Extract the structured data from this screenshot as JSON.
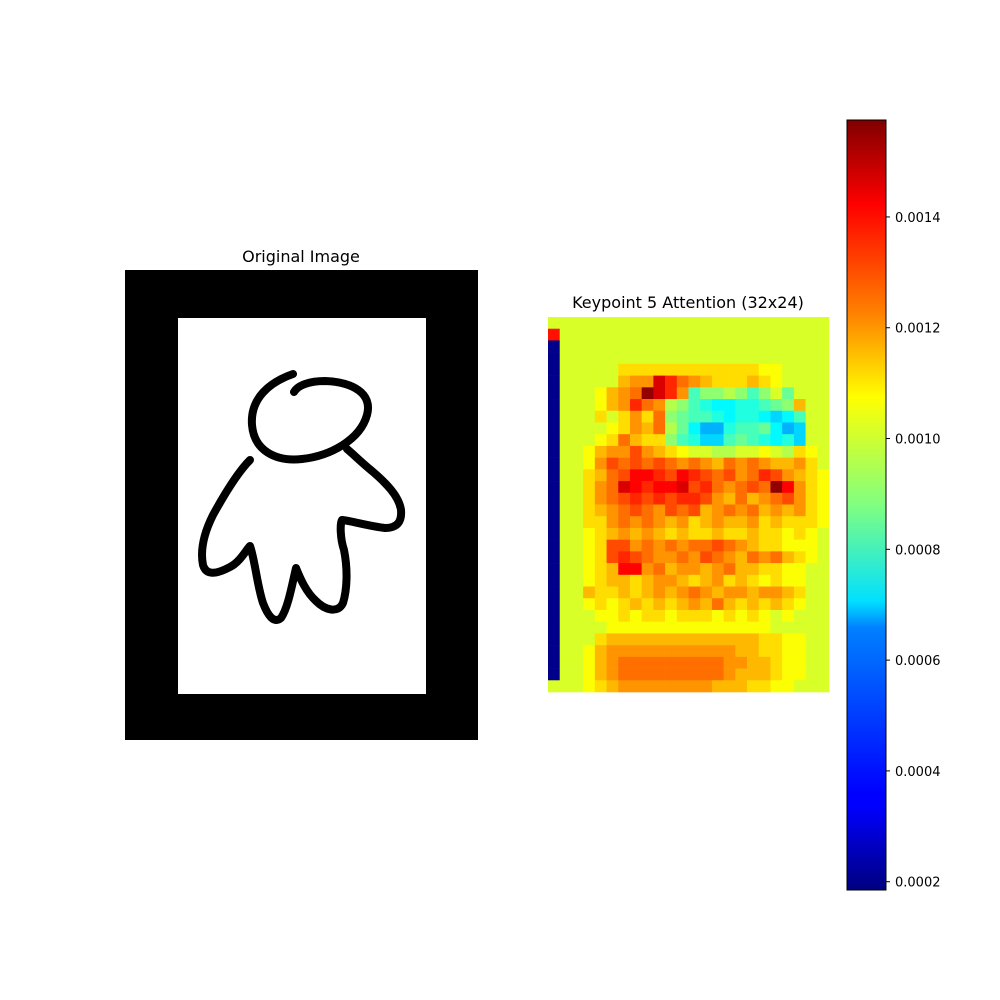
{
  "left_panel": {
    "title": "Original Image"
  },
  "right_panel": {
    "title": "Keypoint 5 Attention (32x24)"
  },
  "colorbar": {
    "colormap": "jet",
    "range": [
      0.000185,
      0.001575
    ],
    "tick_labels": [
      "0.0014",
      "0.0012",
      "0.0010",
      "0.0008",
      "0.0006",
      "0.0004",
      "0.0002"
    ],
    "tick_values": [
      0.0014,
      0.0012,
      0.001,
      0.0008,
      0.0006,
      0.0004,
      0.0002
    ]
  },
  "chart_data": {
    "type": "heatmap",
    "title": "Keypoint 5 Attention (32x24)",
    "rows": 32,
    "cols": 24,
    "vmin": 0.000185,
    "vmax": 0.001575,
    "colormap": "jet",
    "grid": false,
    "values": [
      [
        0.001,
        0.001,
        0.001,
        0.001,
        0.001,
        0.001,
        0.001,
        0.001,
        0.001,
        0.001,
        0.001,
        0.001,
        0.001,
        0.001,
        0.001,
        0.001,
        0.001,
        0.001,
        0.001,
        0.001,
        0.001,
        0.001,
        0.001,
        0.001
      ],
      [
        0.00138,
        0.001,
        0.001,
        0.001,
        0.001,
        0.001,
        0.001,
        0.001,
        0.001,
        0.001,
        0.001,
        0.001,
        0.001,
        0.001,
        0.001,
        0.001,
        0.001,
        0.001,
        0.001,
        0.001,
        0.001,
        0.001,
        0.001,
        0.001
      ],
      [
        0.0002,
        0.001,
        0.001,
        0.001,
        0.001,
        0.001,
        0.001,
        0.001,
        0.001,
        0.001,
        0.001,
        0.001,
        0.001,
        0.001,
        0.001,
        0.001,
        0.001,
        0.001,
        0.001,
        0.001,
        0.001,
        0.001,
        0.001,
        0.001
      ],
      [
        0.0002,
        0.001,
        0.001,
        0.001,
        0.001,
        0.001,
        0.001,
        0.001,
        0.001,
        0.001,
        0.001,
        0.001,
        0.001,
        0.001,
        0.001,
        0.001,
        0.001,
        0.001,
        0.001,
        0.001,
        0.001,
        0.001,
        0.001,
        0.001
      ],
      [
        0.0002,
        0.001,
        0.001,
        0.001,
        0.001,
        0.001,
        0.0011,
        0.0011,
        0.0011,
        0.0011,
        0.0011,
        0.0011,
        0.0011,
        0.0011,
        0.0011,
        0.0011,
        0.0011,
        0.0011,
        0.00105,
        0.00105,
        0.001,
        0.001,
        0.001,
        0.001
      ],
      [
        0.0002,
        0.001,
        0.001,
        0.001,
        0.001,
        0.001,
        0.00115,
        0.0012,
        0.0012,
        0.00145,
        0.00135,
        0.00125,
        0.0012,
        0.00115,
        0.0011,
        0.0011,
        0.0011,
        0.00115,
        0.0011,
        0.00105,
        0.001,
        0.001,
        0.001,
        0.001
      ],
      [
        0.0002,
        0.001,
        0.001,
        0.001,
        0.00105,
        0.00115,
        0.0012,
        0.00125,
        0.00155,
        0.00145,
        0.00135,
        0.0012,
        0.0008,
        0.0009,
        0.0009,
        0.00095,
        0.0009,
        0.0008,
        0.0009,
        0.001,
        0.00085,
        0.001,
        0.001,
        0.001
      ],
      [
        0.0002,
        0.001,
        0.001,
        0.001,
        0.00105,
        0.00115,
        0.0012,
        0.00135,
        0.00125,
        0.0012,
        0.00095,
        0.0009,
        0.0008,
        0.00075,
        0.0007,
        0.0007,
        0.00075,
        0.00075,
        0.0008,
        0.00085,
        0.0009,
        0.00115,
        0.001,
        0.001
      ],
      [
        0.0002,
        0.001,
        0.001,
        0.001,
        0.0011,
        0.001,
        0.0011,
        0.0012,
        0.0011,
        0.00125,
        0.0009,
        0.00085,
        0.0008,
        0.0008,
        0.00075,
        0.0007,
        0.00075,
        0.00075,
        0.0007,
        0.00065,
        0.0007,
        0.0008,
        0.001,
        0.001
      ],
      [
        0.0002,
        0.001,
        0.001,
        0.001,
        0.001,
        0.00105,
        0.0011,
        0.0012,
        0.00115,
        0.00125,
        0.00095,
        0.00085,
        0.0007,
        0.0006,
        0.0006,
        0.00075,
        0.0008,
        0.0008,
        0.00085,
        0.0007,
        0.0006,
        0.00065,
        0.001,
        0.001
      ],
      [
        0.0002,
        0.001,
        0.001,
        0.001,
        0.00105,
        0.0011,
        0.00125,
        0.00115,
        0.0011,
        0.0011,
        0.0009,
        0.0008,
        0.00075,
        0.00065,
        0.00065,
        0.0008,
        0.00085,
        0.0008,
        0.00075,
        0.0007,
        0.00075,
        0.00065,
        0.001,
        0.001
      ],
      [
        0.0002,
        0.001,
        0.001,
        0.00105,
        0.00115,
        0.0012,
        0.0012,
        0.0013,
        0.0012,
        0.00115,
        0.0011,
        0.00105,
        0.001,
        0.001,
        0.00095,
        0.00095,
        0.001,
        0.001,
        0.00105,
        0.001,
        0.00095,
        0.0011,
        0.00105,
        0.001
      ],
      [
        0.0002,
        0.001,
        0.001,
        0.00105,
        0.0012,
        0.0013,
        0.00125,
        0.0013,
        0.00125,
        0.0013,
        0.00125,
        0.0012,
        0.00125,
        0.0012,
        0.00115,
        0.00125,
        0.0012,
        0.00125,
        0.0012,
        0.00115,
        0.00115,
        0.0012,
        0.0011,
        0.001
      ],
      [
        0.0002,
        0.001,
        0.001,
        0.0011,
        0.00115,
        0.00125,
        0.0013,
        0.0014,
        0.0014,
        0.00135,
        0.0013,
        0.0014,
        0.00135,
        0.0013,
        0.00125,
        0.0013,
        0.0012,
        0.00125,
        0.00135,
        0.0013,
        0.0012,
        0.00115,
        0.0011,
        0.00105
      ],
      [
        0.0002,
        0.001,
        0.001,
        0.0011,
        0.0012,
        0.00125,
        0.00145,
        0.0014,
        0.00135,
        0.0014,
        0.0014,
        0.00145,
        0.0013,
        0.00135,
        0.00125,
        0.0012,
        0.00125,
        0.0013,
        0.00125,
        0.00155,
        0.0014,
        0.0012,
        0.0011,
        0.00105
      ],
      [
        0.0002,
        0.001,
        0.001,
        0.0011,
        0.0012,
        0.00125,
        0.0013,
        0.00135,
        0.0013,
        0.00135,
        0.0013,
        0.00135,
        0.00135,
        0.0013,
        0.0012,
        0.00115,
        0.00125,
        0.00115,
        0.0012,
        0.00125,
        0.0013,
        0.0012,
        0.0011,
        0.00105
      ],
      [
        0.0002,
        0.001,
        0.001,
        0.0011,
        0.00115,
        0.0012,
        0.00125,
        0.0013,
        0.00125,
        0.0012,
        0.0013,
        0.00125,
        0.0013,
        0.00115,
        0.0012,
        0.00125,
        0.0012,
        0.00125,
        0.00115,
        0.0012,
        0.00115,
        0.0012,
        0.0011,
        0.00105
      ],
      [
        0.0002,
        0.001,
        0.001,
        0.0011,
        0.0011,
        0.0012,
        0.00125,
        0.0012,
        0.00125,
        0.0012,
        0.00115,
        0.0012,
        0.0011,
        0.00115,
        0.0012,
        0.00115,
        0.00115,
        0.0012,
        0.0011,
        0.00115,
        0.0011,
        0.0011,
        0.0011,
        0.00105
      ],
      [
        0.0002,
        0.001,
        0.001,
        0.00105,
        0.0011,
        0.00115,
        0.0012,
        0.00115,
        0.0012,
        0.00115,
        0.0011,
        0.00115,
        0.0011,
        0.0011,
        0.00115,
        0.0011,
        0.0011,
        0.00115,
        0.0011,
        0.0011,
        0.00105,
        0.0011,
        0.00105,
        0.001
      ],
      [
        0.0002,
        0.001,
        0.001,
        0.00105,
        0.0011,
        0.0013,
        0.0013,
        0.0012,
        0.00125,
        0.0012,
        0.00125,
        0.0012,
        0.00125,
        0.00125,
        0.0013,
        0.00125,
        0.0012,
        0.00115,
        0.0011,
        0.0011,
        0.00105,
        0.00105,
        0.00105,
        0.001
      ],
      [
        0.0002,
        0.001,
        0.001,
        0.00105,
        0.0011,
        0.0013,
        0.00135,
        0.0013,
        0.00125,
        0.0012,
        0.0012,
        0.00125,
        0.0012,
        0.0013,
        0.00125,
        0.0012,
        0.00115,
        0.00125,
        0.0012,
        0.00125,
        0.00115,
        0.0011,
        0.00105,
        0.001
      ],
      [
        0.0002,
        0.001,
        0.001,
        0.00105,
        0.0011,
        0.00115,
        0.0014,
        0.0014,
        0.0012,
        0.00125,
        0.00115,
        0.0012,
        0.0012,
        0.00115,
        0.0012,
        0.00125,
        0.00115,
        0.00115,
        0.0011,
        0.0011,
        0.00105,
        0.00105,
        0.001,
        0.001
      ],
      [
        0.0002,
        0.001,
        0.001,
        0.00105,
        0.0011,
        0.00115,
        0.00115,
        0.0011,
        0.00115,
        0.0012,
        0.0012,
        0.00115,
        0.0011,
        0.00115,
        0.0012,
        0.0011,
        0.00115,
        0.0011,
        0.00105,
        0.0011,
        0.00105,
        0.00105,
        0.001,
        0.001
      ],
      [
        0.0002,
        0.001,
        0.001,
        0.00115,
        0.0011,
        0.0011,
        0.00115,
        0.0011,
        0.00115,
        0.0012,
        0.00115,
        0.0012,
        0.00125,
        0.0012,
        0.00115,
        0.0012,
        0.0012,
        0.00115,
        0.0012,
        0.0012,
        0.00115,
        0.0011,
        0.001,
        0.001
      ],
      [
        0.0002,
        0.001,
        0.001,
        0.00105,
        0.0011,
        0.00105,
        0.0011,
        0.00115,
        0.0011,
        0.00115,
        0.0011,
        0.00115,
        0.0012,
        0.00115,
        0.00125,
        0.00115,
        0.0011,
        0.00115,
        0.0011,
        0.00115,
        0.0011,
        0.00105,
        0.001,
        0.001
      ],
      [
        0.0002,
        0.001,
        0.001,
        0.001,
        0.00105,
        0.00105,
        0.0011,
        0.00105,
        0.0011,
        0.0011,
        0.00105,
        0.0011,
        0.0011,
        0.0011,
        0.00105,
        0.0011,
        0.00105,
        0.0011,
        0.00105,
        0.001,
        0.00105,
        0.001,
        0.001,
        0.001
      ],
      [
        0.0002,
        0.001,
        0.001,
        0.001,
        0.001,
        0.00105,
        0.00105,
        0.00105,
        0.00105,
        0.00105,
        0.00105,
        0.00105,
        0.00105,
        0.00105,
        0.00105,
        0.00105,
        0.00105,
        0.00105,
        0.00105,
        0.001,
        0.001,
        0.001,
        0.001,
        0.001
      ],
      [
        0.0002,
        0.001,
        0.001,
        0.001,
        0.0011,
        0.00115,
        0.00115,
        0.00115,
        0.00115,
        0.00115,
        0.00115,
        0.00115,
        0.00115,
        0.00115,
        0.00115,
        0.00115,
        0.00115,
        0.00115,
        0.0011,
        0.0011,
        0.00105,
        0.00105,
        0.001,
        0.001
      ],
      [
        0.0002,
        0.001,
        0.001,
        0.00105,
        0.00115,
        0.0012,
        0.0012,
        0.0012,
        0.0012,
        0.0012,
        0.0012,
        0.0012,
        0.0012,
        0.0012,
        0.0012,
        0.0012,
        0.00115,
        0.00115,
        0.0011,
        0.0011,
        0.00105,
        0.00105,
        0.001,
        0.001
      ],
      [
        0.0002,
        0.001,
        0.001,
        0.00105,
        0.00115,
        0.0012,
        0.00125,
        0.00125,
        0.00125,
        0.00125,
        0.00125,
        0.00125,
        0.00125,
        0.00125,
        0.00125,
        0.0012,
        0.0012,
        0.00115,
        0.00115,
        0.0011,
        0.00105,
        0.00105,
        0.001,
        0.001
      ],
      [
        0.0002,
        0.001,
        0.001,
        0.00105,
        0.00115,
        0.0012,
        0.00125,
        0.00125,
        0.00125,
        0.00125,
        0.00125,
        0.00125,
        0.00125,
        0.00125,
        0.00125,
        0.0012,
        0.00115,
        0.00115,
        0.00115,
        0.0011,
        0.00105,
        0.00105,
        0.001,
        0.001
      ],
      [
        0.001,
        0.001,
        0.001,
        0.00105,
        0.0011,
        0.00115,
        0.0012,
        0.0012,
        0.0012,
        0.0012,
        0.0012,
        0.0012,
        0.0012,
        0.0012,
        0.00115,
        0.00115,
        0.00115,
        0.0011,
        0.0011,
        0.00105,
        0.00105,
        0.001,
        0.001,
        0.001
      ]
    ]
  }
}
